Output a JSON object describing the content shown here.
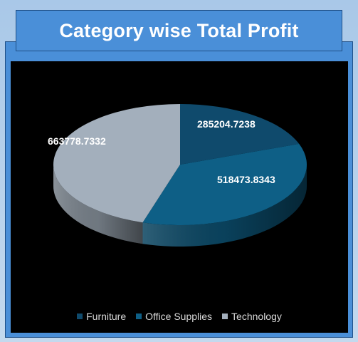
{
  "chart_data": {
    "type": "pie",
    "style": "3d",
    "title": "Category wise Total Profit",
    "categories": [
      "Furniture",
      "Office Supplies",
      "Technology"
    ],
    "values": [
      285204.7238,
      518473.8343,
      663778.7332
    ],
    "data_labels": [
      "285204.7238",
      "518473.8343",
      "663778.7332"
    ],
    "colors": [
      "#0f4a6c",
      "#0e5f86",
      "#a3afbc"
    ],
    "legend_position": "bottom"
  }
}
